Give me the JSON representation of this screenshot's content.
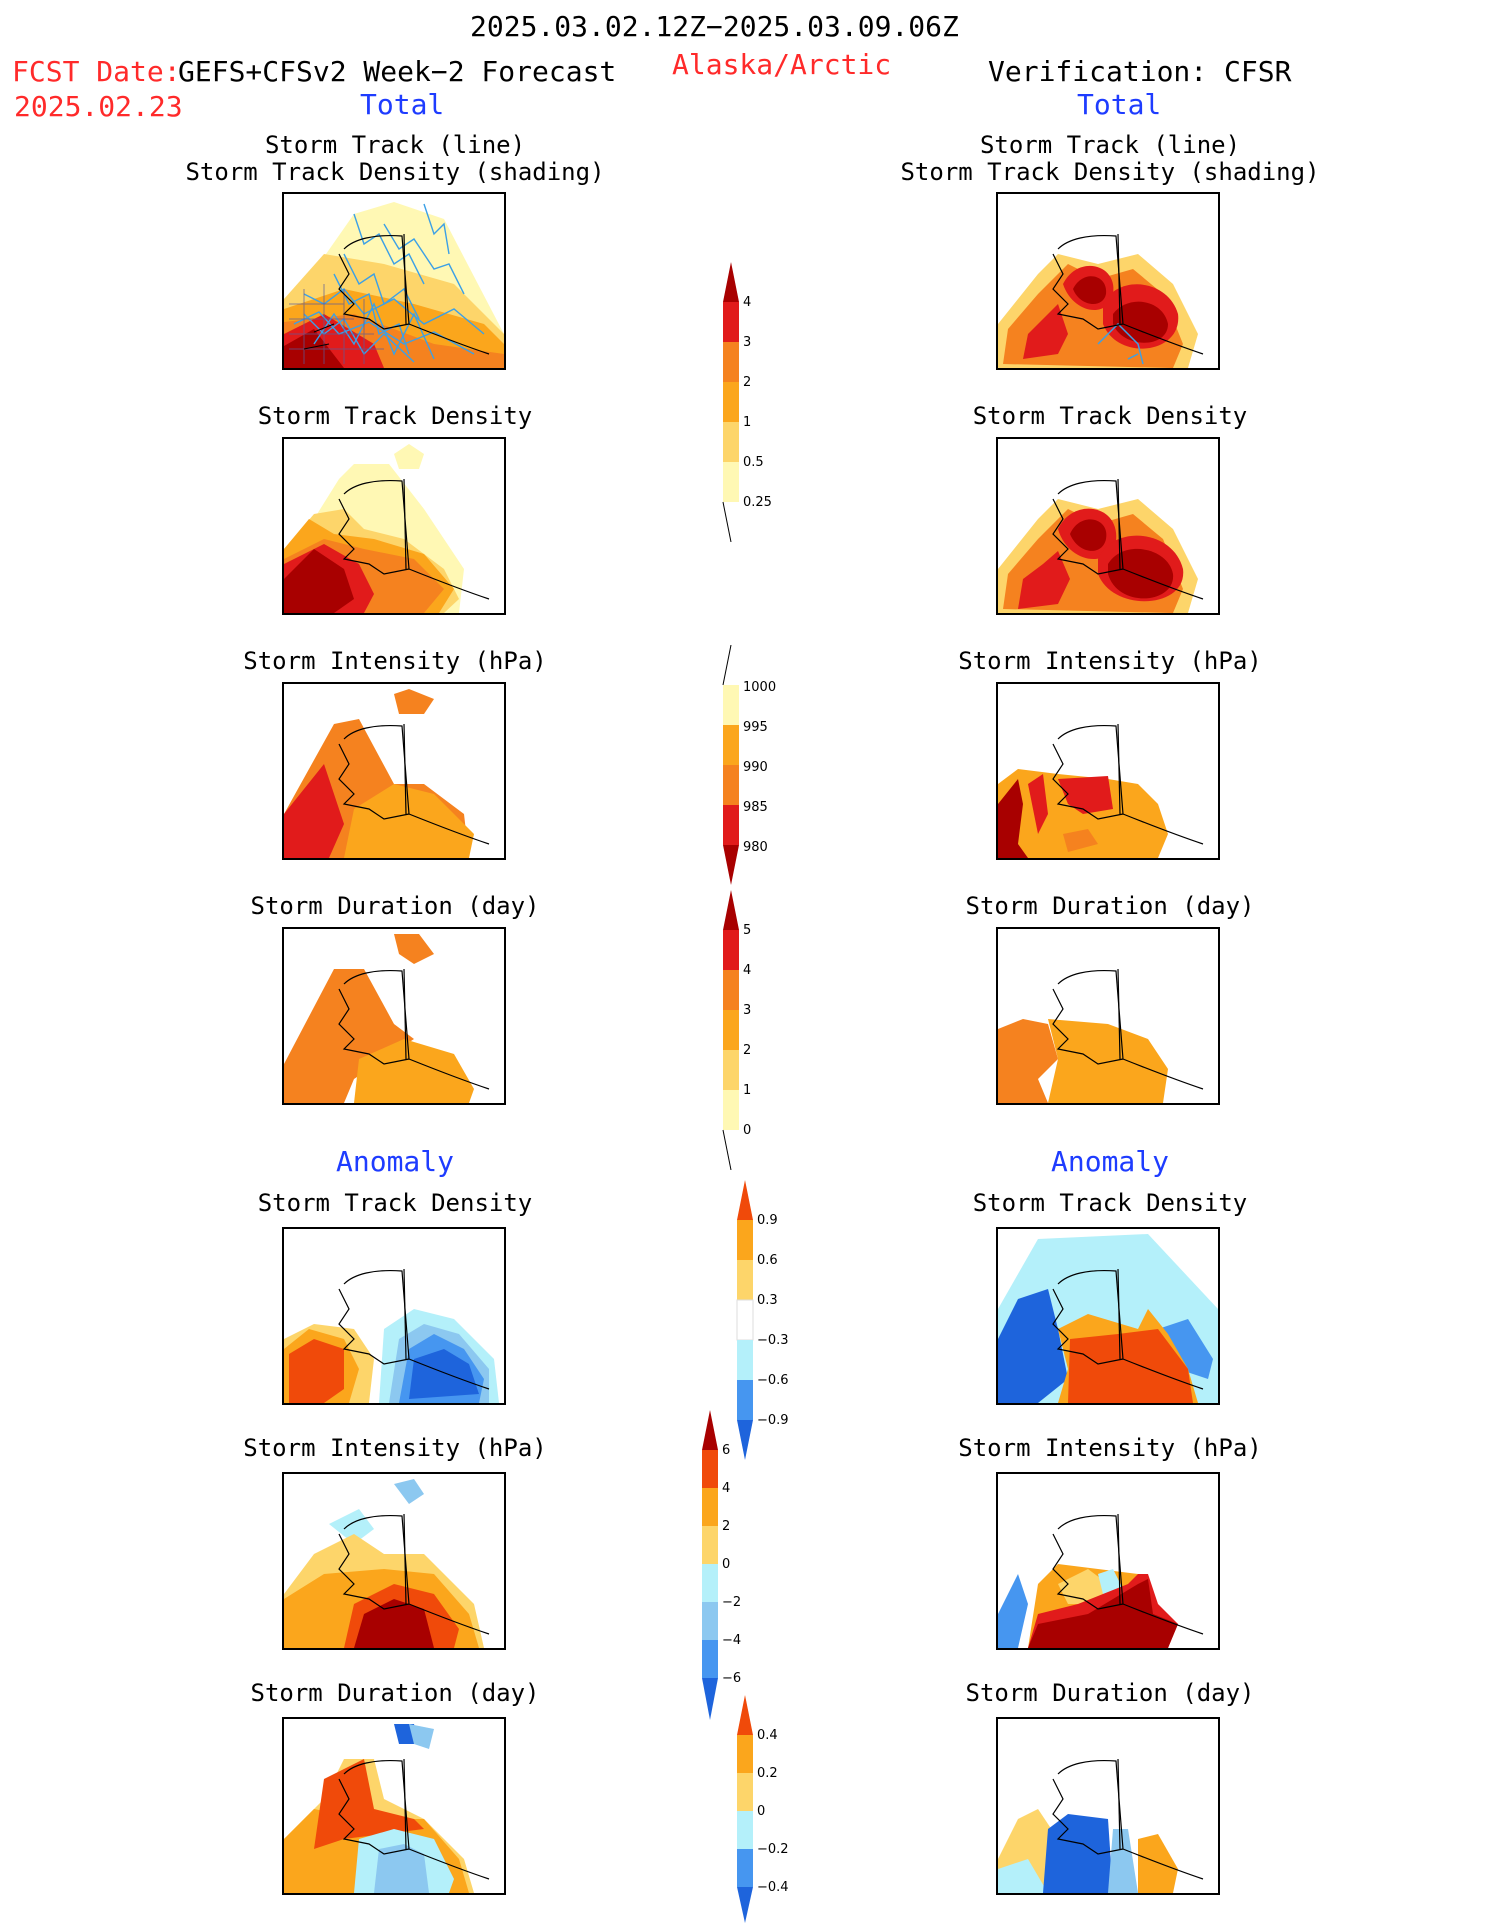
{
  "header": {
    "date_range": "2025.03.02.12Z−2025.03.09.06Z",
    "fcst_label": "FCST Date:",
    "fcst_date": "2025.02.23",
    "model": "GEFS+CFSv2 Week−2 Forecast",
    "region": "Alaska/Arctic",
    "verification": "Verification: CFSR",
    "total_left": "Total",
    "total_right": "Total",
    "anomaly_left": "Anomaly",
    "anomaly_right": "Anomaly"
  },
  "panel_titles": {
    "track": "Storm Track (line)\nStorm Track Density (shading)",
    "density": "Storm Track Density",
    "intensity": "Storm Intensity (hPa)",
    "duration": "Storm Duration (day)"
  },
  "colors": {
    "darkred": "#a80000",
    "red": "#e11b1b",
    "orange_red": "#f04a0a",
    "orange": "#f5821f",
    "light_orange": "#fba61c",
    "yellow": "#fdd56a",
    "pale_yellow": "#fff8b4",
    "light_cyan": "#b4f0fa",
    "sky": "#8cc8f0",
    "mid_blue": "#4696f0",
    "blue": "#1e64dc",
    "track_line": "#3ca0e6"
  },
  "colorbars": {
    "density_total": [
      "4",
      "3",
      "2",
      "1",
      "0.5",
      "0.25"
    ],
    "intensity_total": [
      "1000",
      "995",
      "990",
      "985",
      "980"
    ],
    "duration_total": [
      "5",
      "4",
      "3",
      "2",
      "1",
      "0"
    ],
    "density_anom": [
      "0.9",
      "0.6",
      "0.3",
      "−0.3",
      "−0.6",
      "−0.9"
    ],
    "intensity_anom": [
      "6",
      "4",
      "2",
      "0",
      "−2",
      "−4",
      "−6"
    ],
    "duration_anom": [
      "0.4",
      "0.2",
      "0",
      "−0.2",
      "−0.4"
    ]
  }
}
